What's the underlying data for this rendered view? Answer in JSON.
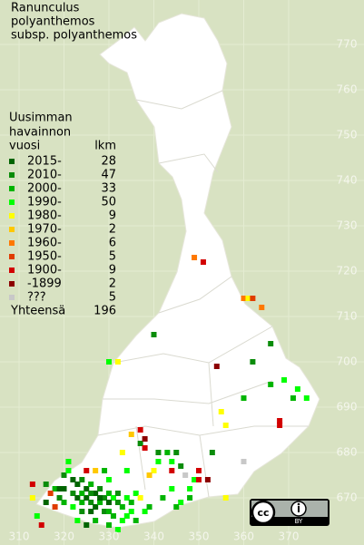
{
  "title": [
    "Ranunculus",
    "polyanthemos",
    "subsp. polyanthemos"
  ],
  "legend": {
    "header": [
      "Uusimman",
      "havainnon"
    ],
    "period_label": "vuosi",
    "count_label": "lkm",
    "entries": [
      {
        "label": "2015-",
        "count": 28,
        "color": "#006400"
      },
      {
        "label": "2010-",
        "count": 47,
        "color": "#0a8c0a"
      },
      {
        "label": "2000-",
        "count": 33,
        "color": "#00b400"
      },
      {
        "label": "1990-",
        "count": 50,
        "color": "#00ff00"
      },
      {
        "label": "1980-",
        "count": 9,
        "color": "#ffff00"
      },
      {
        "label": "1970-",
        "count": 2,
        "color": "#ffc800"
      },
      {
        "label": "1960-",
        "count": 6,
        "color": "#ff7800"
      },
      {
        "label": "1950-",
        "count": 5,
        "color": "#e03c00"
      },
      {
        "label": "1900-",
        "count": 9,
        "color": "#d20000"
      },
      {
        "label": "-1899",
        "count": 2,
        "color": "#8c0000"
      },
      {
        "label": "???",
        "count": 5,
        "color": "#c8c8c8"
      }
    ],
    "total_label": "Yhteensä",
    "total": 196
  },
  "northing_ticks": [
    770,
    760,
    750,
    740,
    730,
    720,
    710,
    700,
    690,
    680,
    670
  ],
  "easting_ticks": [
    310,
    320,
    330,
    340,
    350,
    360,
    370
  ],
  "license": "BY",
  "observations": [
    [
      349,
      723,
      6
    ],
    [
      351,
      722,
      8
    ],
    [
      340,
      706,
      1
    ],
    [
      366,
      704,
      1
    ],
    [
      360,
      714,
      6
    ],
    [
      361,
      714,
      4
    ],
    [
      362,
      714,
      7
    ],
    [
      364,
      712,
      6
    ],
    [
      330,
      700,
      3
    ],
    [
      332,
      700,
      4
    ],
    [
      354,
      699,
      9
    ],
    [
      362,
      700,
      1
    ],
    [
      369,
      696,
      3
    ],
    [
      366,
      695,
      2
    ],
    [
      372,
      694,
      3
    ],
    [
      371,
      692,
      2
    ],
    [
      374,
      692,
      3
    ],
    [
      360,
      692,
      2
    ],
    [
      355,
      689,
      4
    ],
    [
      368,
      686,
      8
    ],
    [
      368,
      687,
      8
    ],
    [
      356,
      686,
      4
    ],
    [
      353,
      680,
      1
    ],
    [
      360,
      678,
      10
    ],
    [
      333,
      680,
      4
    ],
    [
      335,
      684,
      5
    ],
    [
      337,
      685,
      8
    ],
    [
      337,
      682,
      1
    ],
    [
      338,
      683,
      9
    ],
    [
      338,
      681,
      8
    ],
    [
      341,
      680,
      1
    ],
    [
      343,
      680,
      2
    ],
    [
      345,
      680,
      1
    ],
    [
      341,
      678,
      3
    ],
    [
      344,
      678,
      3
    ],
    [
      346,
      677,
      1
    ],
    [
      340,
      676,
      4
    ],
    [
      344,
      676,
      8
    ],
    [
      347,
      675,
      10
    ],
    [
      349,
      674,
      3
    ],
    [
      350,
      674,
      8
    ],
    [
      352,
      674,
      9
    ],
    [
      348,
      672,
      3
    ],
    [
      344,
      672,
      3
    ],
    [
      339,
      675,
      5
    ],
    [
      334,
      676,
      3
    ],
    [
      346,
      669,
      3
    ],
    [
      348,
      670,
      2
    ],
    [
      356,
      670,
      4
    ],
    [
      350,
      676,
      8
    ],
    [
      342,
      670,
      2
    ],
    [
      345,
      668,
      2
    ],
    [
      316,
      673,
      1
    ],
    [
      318,
      672,
      2
    ],
    [
      320,
      675,
      1
    ],
    [
      321,
      676,
      3
    ],
    [
      322,
      674,
      0
    ],
    [
      323,
      673,
      0
    ],
    [
      324,
      674,
      1
    ],
    [
      325,
      672,
      0
    ],
    [
      326,
      673,
      2
    ],
    [
      327,
      671,
      0
    ],
    [
      328,
      672,
      1
    ],
    [
      322,
      671,
      1
    ],
    [
      323,
      670,
      0
    ],
    [
      324,
      669,
      2
    ],
    [
      325,
      670,
      0
    ],
    [
      326,
      669,
      1
    ],
    [
      327,
      668,
      0
    ],
    [
      328,
      669,
      2
    ],
    [
      329,
      670,
      1
    ],
    [
      330,
      671,
      2
    ],
    [
      331,
      670,
      3
    ],
    [
      332,
      669,
      1
    ],
    [
      333,
      668,
      2
    ],
    [
      334,
      670,
      3
    ],
    [
      335,
      669,
      2
    ],
    [
      336,
      671,
      3
    ],
    [
      337,
      670,
      4
    ],
    [
      335,
      667,
      3
    ],
    [
      338,
      667,
      3
    ],
    [
      339,
      668,
      2
    ],
    [
      334,
      666,
      3
    ],
    [
      331,
      666,
      2
    ],
    [
      329,
      667,
      1
    ],
    [
      326,
      667,
      0
    ],
    [
      324,
      667,
      1
    ],
    [
      322,
      668,
      3
    ],
    [
      320,
      669,
      2
    ],
    [
      319,
      670,
      1
    ],
    [
      318,
      668,
      7
    ],
    [
      316,
      669,
      0
    ],
    [
      313,
      670,
      4
    ],
    [
      313,
      673,
      8
    ],
    [
      314,
      666,
      3
    ],
    [
      323,
      665,
      3
    ],
    [
      325,
      664,
      0
    ],
    [
      330,
      664,
      2
    ],
    [
      332,
      663,
      3
    ],
    [
      325,
      676,
      8
    ],
    [
      327,
      676,
      5
    ],
    [
      330,
      674,
      3
    ],
    [
      329,
      676,
      2
    ],
    [
      321,
      678,
      3
    ],
    [
      319,
      672,
      0
    ],
    [
      324,
      671,
      2
    ],
    [
      326,
      671,
      1
    ],
    [
      328,
      670,
      0
    ],
    [
      330,
      669,
      0
    ],
    [
      330,
      667,
      2
    ],
    [
      332,
      671,
      1
    ],
    [
      333,
      665,
      3
    ],
    [
      336,
      665,
      2
    ],
    [
      327,
      665,
      2
    ],
    [
      320,
      672,
      0
    ],
    [
      317,
      671,
      7
    ],
    [
      315,
      664,
      8
    ]
  ]
}
